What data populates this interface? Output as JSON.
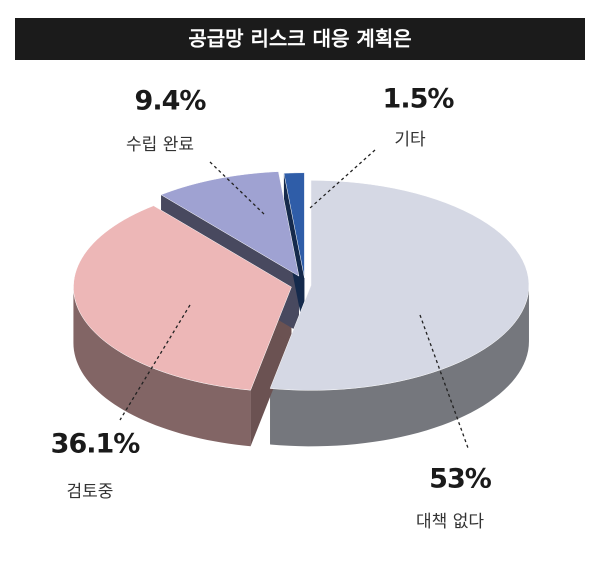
{
  "chart_data": {
    "type": "pie",
    "title": "공급망 리스크 대응 계획은",
    "categories": [
      "대책 없다",
      "검토중",
      "수립 완료",
      "기타"
    ],
    "values": [
      53,
      36.1,
      9.4,
      1.5
    ],
    "value_labels": [
      "53%",
      "36.1%",
      "9.4%",
      "1.5%"
    ],
    "colors": [
      "#d5d8e4",
      "#edb7b7",
      "#9fa2d2",
      "#2f5da8"
    ]
  }
}
